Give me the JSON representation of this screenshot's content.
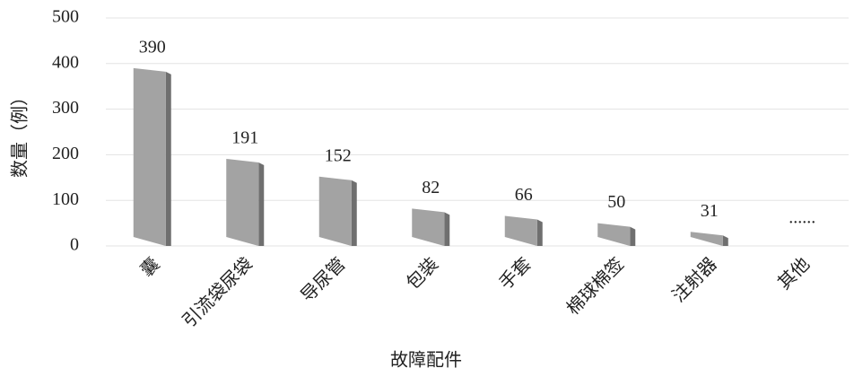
{
  "chart_data": {
    "type": "bar",
    "x_label": "故障配件",
    "y_label": "数量（例）",
    "categories": [
      "囊",
      "引流袋尿袋",
      "导尿管",
      "包装",
      "手套",
      "棉球棉签",
      "注射器",
      "其他"
    ],
    "values": [
      390,
      191,
      152,
      82,
      66,
      50,
      31,
      null
    ],
    "value_labels": [
      "390",
      "191",
      "152",
      "82",
      "66",
      "50",
      "31",
      "......"
    ],
    "color": "#a3a3a3",
    "ylim": [
      0,
      500
    ],
    "yticks": [
      0,
      100,
      200,
      300,
      400,
      500
    ],
    "grid": true
  }
}
